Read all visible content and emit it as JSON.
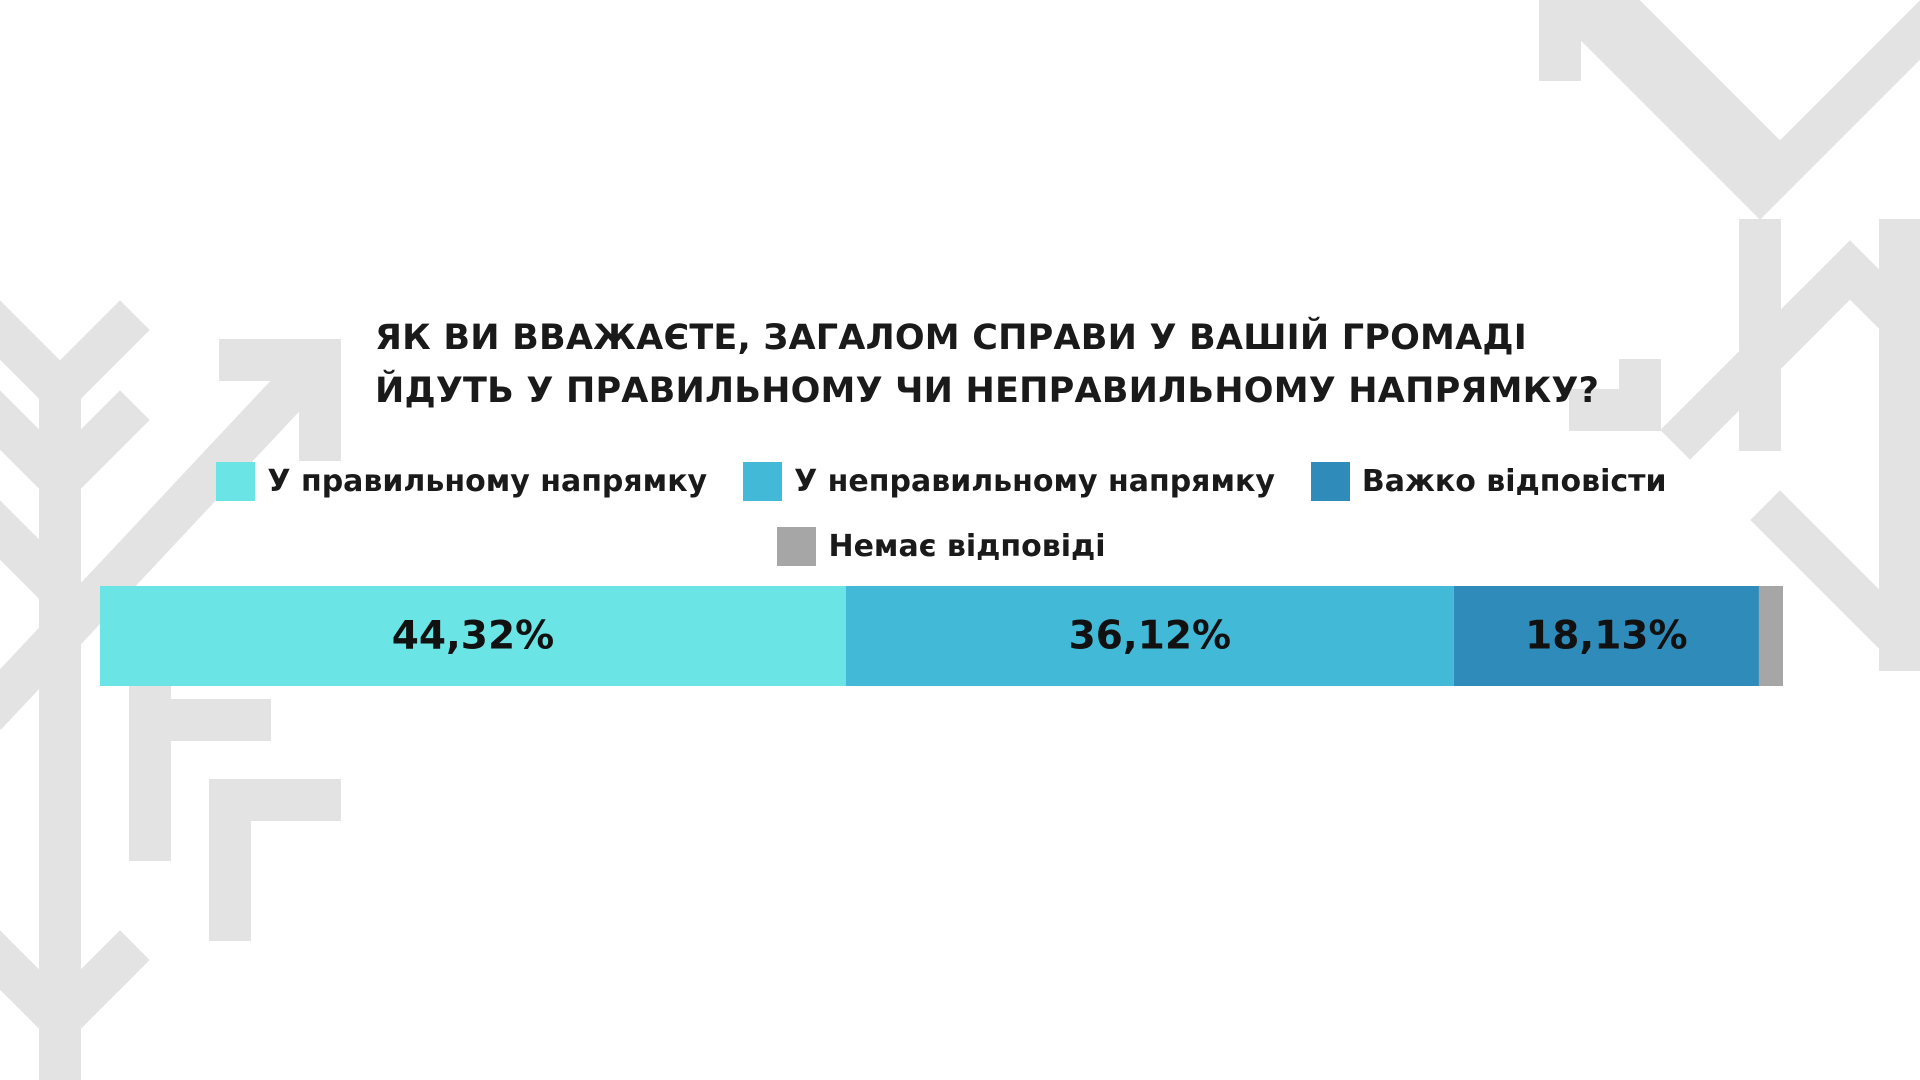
{
  "chart_data": {
    "type": "bar",
    "orientation": "horizontal-stacked",
    "title": "ЯК ВИ ВВАЖАЄТЕ, ЗАГАЛОМ СПРАВИ У ВАШІЙ ГРОМАДІ ЙДУТЬ У ПРАВИЛЬНОМУ ЧИ НЕПРАВИЛЬНОМУ НАПРЯМКУ?",
    "title_lines": [
      "ЯК ВИ ВВАЖАЄТЕ, ЗАГАЛОМ СПРАВИ У ВАШІЙ ГРОМАДІ",
      "ЙДУТЬ У ПРАВИЛЬНОМУ ЧИ НЕПРАВИЛЬНОМУ НАПРЯМКУ?"
    ],
    "legend_position": "top-center",
    "grid": false,
    "xlim": [
      0,
      100
    ],
    "series": [
      {
        "name": "У правильному напрямку",
        "value": 44.32,
        "label": "44,32%",
        "color": "#6be4e6"
      },
      {
        "name": "У неправильному напрямку",
        "value": 36.12,
        "label": "36,12%",
        "color": "#42b9d6"
      },
      {
        "name": "Важко відповісти",
        "value": 18.13,
        "label": "18,13%",
        "color": "#2e8bba"
      },
      {
        "name": "Немає відповіді",
        "value": 1.43,
        "label": "",
        "color": "#a6a6a6"
      }
    ]
  }
}
